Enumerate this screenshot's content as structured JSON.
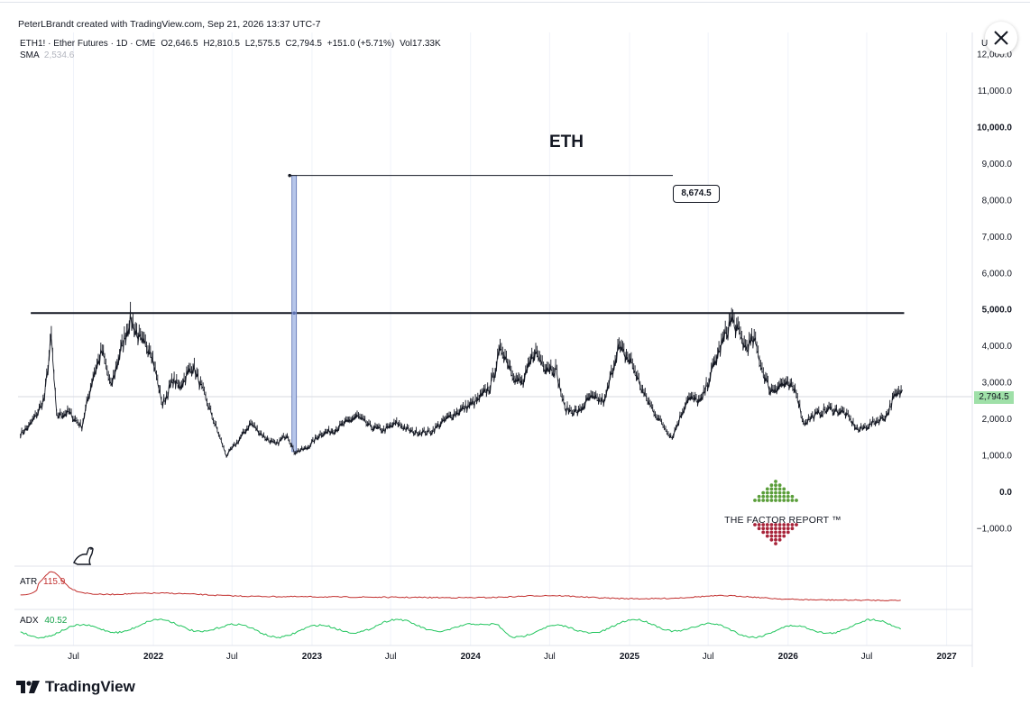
{
  "header": {
    "credit": "PeterLBrandt created with TradingView.com, Sep 21, 2026 13:37 UTC-7"
  },
  "legend": {
    "symbol": "ETH1! · Ether Futures · 1D · CME",
    "open": "O2,646.5",
    "high": "H2,810.5",
    "low": "L2,575.5",
    "close": "C2,794.5",
    "change": "+151.0 (+5.71%)",
    "volume": "Vol17.33K",
    "sma_label": "SMA",
    "sma_value": "2,534.6"
  },
  "price_axis_top_label": "U",
  "footer": {
    "brand": "TradingView"
  },
  "watermark": {
    "text": "THE FACTOR REPORT ™"
  },
  "annotation": {
    "target_label": "8,674.5"
  },
  "last_price_label": "2,794.5",
  "indicators": {
    "atr": {
      "label": "ATR",
      "value": "115.9",
      "color": "#c2302f"
    },
    "adx": {
      "label": "ADX",
      "value": "40.52",
      "color": "#22c55e"
    }
  },
  "colors": {
    "candles": "#131722",
    "resistance": "#131722",
    "measure_fill": "#b7c6ea",
    "measure_stroke": "#5a6fb0",
    "last_price_bg": "#9fe0a8",
    "watermark_green": "#5a9e3a",
    "watermark_red": "#a8243a"
  },
  "chart_data": {
    "type": "line",
    "title": "ETH",
    "y_scale": "linear",
    "ylim": [
      -1500,
      12500
    ],
    "y_ticks": [
      -1000,
      0,
      1000,
      2000,
      3000,
      4000,
      5000,
      6000,
      7000,
      8000,
      9000,
      10000,
      11000,
      12000
    ],
    "y_tick_labels": [
      "−1,000.0",
      "0.0",
      "1,000.0",
      "2,000.0",
      "3,000.0",
      "4,000.0",
      "5,000.0",
      "6,000.0",
      "7,000.0",
      "8,000.0",
      "9,000.0",
      "10,000.0",
      "11,000.0",
      "12,000.0"
    ],
    "xlim": [
      "2021-02-15",
      "2027-03-01"
    ],
    "x_ticks": [
      {
        "date": "2021-07-01",
        "label": "Jul",
        "bold": false
      },
      {
        "date": "2022-01-01",
        "label": "2022",
        "bold": true
      },
      {
        "date": "2022-07-01",
        "label": "Jul",
        "bold": false
      },
      {
        "date": "2023-01-01",
        "label": "2023",
        "bold": true
      },
      {
        "date": "2023-07-01",
        "label": "Jul",
        "bold": false
      },
      {
        "date": "2024-01-01",
        "label": "2024",
        "bold": true
      },
      {
        "date": "2024-07-01",
        "label": "Jul",
        "bold": false
      },
      {
        "date": "2025-01-01",
        "label": "2025",
        "bold": true
      },
      {
        "date": "2025-07-01",
        "label": "Jul",
        "bold": false
      },
      {
        "date": "2026-01-01",
        "label": "2026",
        "bold": true
      },
      {
        "date": "2026-07-01",
        "label": "Jul",
        "bold": false
      },
      {
        "date": "2027-01-01",
        "label": "2027",
        "bold": true
      }
    ],
    "series": [
      {
        "name": "ETH1!",
        "points": [
          [
            "2021-03-01",
            1600
          ],
          [
            "2021-03-20",
            1800
          ],
          [
            "2021-04-10",
            2200
          ],
          [
            "2021-04-25",
            2600
          ],
          [
            "2021-05-11",
            4300
          ],
          [
            "2021-05-23",
            2100
          ],
          [
            "2021-06-20",
            2200
          ],
          [
            "2021-07-20",
            1800
          ],
          [
            "2021-08-15",
            3200
          ],
          [
            "2021-09-05",
            3900
          ],
          [
            "2021-09-25",
            2900
          ],
          [
            "2021-10-15",
            3800
          ],
          [
            "2021-11-09",
            4800
          ],
          [
            "2021-12-05",
            4100
          ],
          [
            "2021-12-25",
            4000
          ],
          [
            "2022-01-22",
            2400
          ],
          [
            "2022-02-15",
            3100
          ],
          [
            "2022-03-01",
            2900
          ],
          [
            "2022-04-02",
            3500
          ],
          [
            "2022-05-10",
            2300
          ],
          [
            "2022-06-18",
            1000
          ],
          [
            "2022-07-15",
            1400
          ],
          [
            "2022-08-13",
            1900
          ],
          [
            "2022-09-15",
            1500
          ],
          [
            "2022-10-10",
            1300
          ],
          [
            "2022-11-05",
            1600
          ],
          [
            "2022-11-21",
            1100
          ],
          [
            "2022-12-20",
            1200
          ],
          [
            "2023-01-20",
            1600
          ],
          [
            "2023-02-20",
            1700
          ],
          [
            "2023-04-15",
            2100
          ],
          [
            "2023-05-15",
            1800
          ],
          [
            "2023-06-15",
            1700
          ],
          [
            "2023-07-15",
            1900
          ],
          [
            "2023-08-20",
            1650
          ],
          [
            "2023-10-01",
            1650
          ],
          [
            "2023-11-10",
            2050
          ],
          [
            "2023-12-15",
            2300
          ],
          [
            "2024-01-15",
            2500
          ],
          [
            "2024-02-15",
            2900
          ],
          [
            "2024-03-12",
            4000
          ],
          [
            "2024-04-15",
            3100
          ],
          [
            "2024-05-01",
            3000
          ],
          [
            "2024-05-27",
            3900
          ],
          [
            "2024-06-20",
            3500
          ],
          [
            "2024-07-15",
            3400
          ],
          [
            "2024-08-05",
            2300
          ],
          [
            "2024-09-06",
            2200
          ],
          [
            "2024-10-01",
            2600
          ],
          [
            "2024-11-05",
            2500
          ],
          [
            "2024-12-05",
            4000
          ],
          [
            "2025-01-05",
            3600
          ],
          [
            "2025-02-03",
            2700
          ],
          [
            "2025-03-10",
            2000
          ],
          [
            "2025-04-09",
            1500
          ],
          [
            "2025-05-15",
            2600
          ],
          [
            "2025-06-15",
            2500
          ],
          [
            "2025-07-20",
            3700
          ],
          [
            "2025-08-24",
            4800
          ],
          [
            "2025-09-25",
            4000
          ],
          [
            "2025-10-15",
            4200
          ],
          [
            "2025-11-05",
            3300
          ],
          [
            "2025-11-21",
            2800
          ],
          [
            "2025-12-20",
            3000
          ],
          [
            "2026-01-20",
            2800
          ],
          [
            "2026-02-05",
            1900
          ],
          [
            "2026-03-01",
            2100
          ],
          [
            "2026-04-05",
            2300
          ],
          [
            "2026-05-10",
            2200
          ],
          [
            "2026-06-12",
            1700
          ],
          [
            "2026-07-15",
            1900
          ],
          [
            "2026-08-15",
            2100
          ],
          [
            "2026-09-01",
            2600
          ],
          [
            "2026-09-21",
            2794.5
          ]
        ]
      }
    ],
    "annotations": {
      "resistance_level": 4900,
      "resistance_from": "2021-05-01",
      "resistance_to": "2026-09-21",
      "measured_move_date": "2022-11-21",
      "measured_move_from": 1100,
      "measured_move_to": 8674.5,
      "measured_move_label": "8,674.5",
      "target_line_to": "2025-06-01"
    },
    "last_value": 2794.5
  }
}
